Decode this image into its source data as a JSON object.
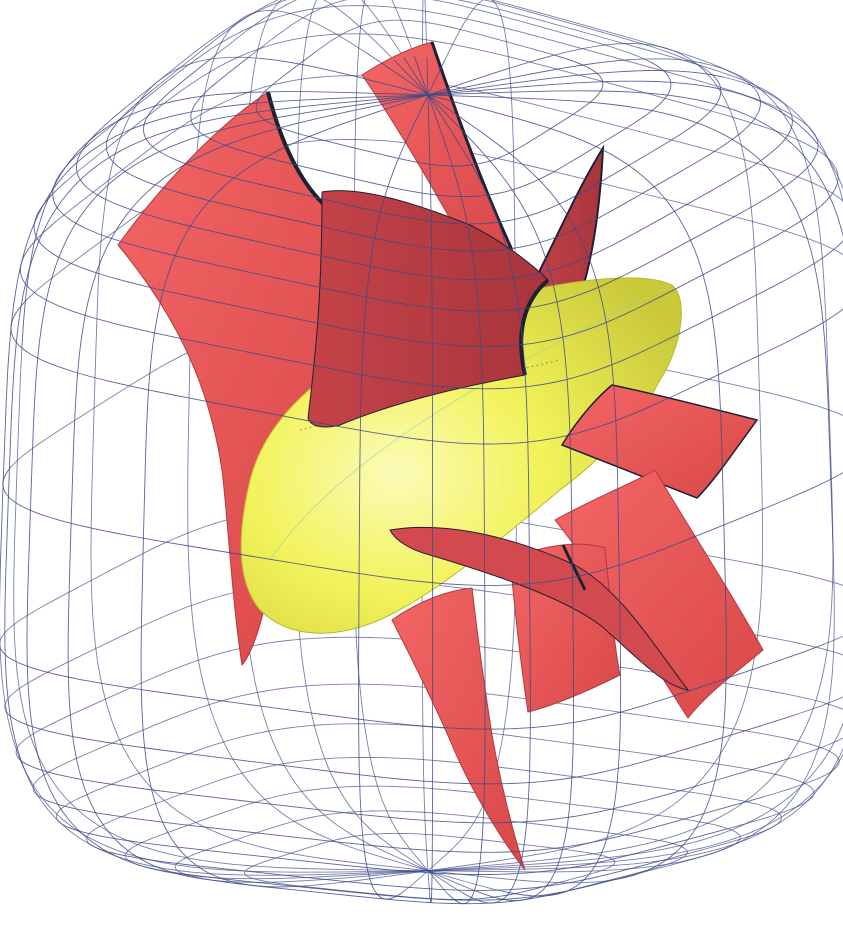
{
  "colors": {
    "background": "#ffffff",
    "wireframe": "#3d4a8a",
    "blade": "#f25a5a",
    "blade_dark": "#b63a3f",
    "blade_edge": "#1d2233",
    "core": "#f2f25a",
    "core_highlight": "#fbfbb8",
    "core_shadow": "#c9c93a"
  },
  "components": [
    {
      "name": "wireframe-envelope",
      "color_key": "wireframe"
    },
    {
      "name": "blade-surfaces",
      "color_key": "blade"
    },
    {
      "name": "core-body",
      "color_key": "core"
    }
  ]
}
